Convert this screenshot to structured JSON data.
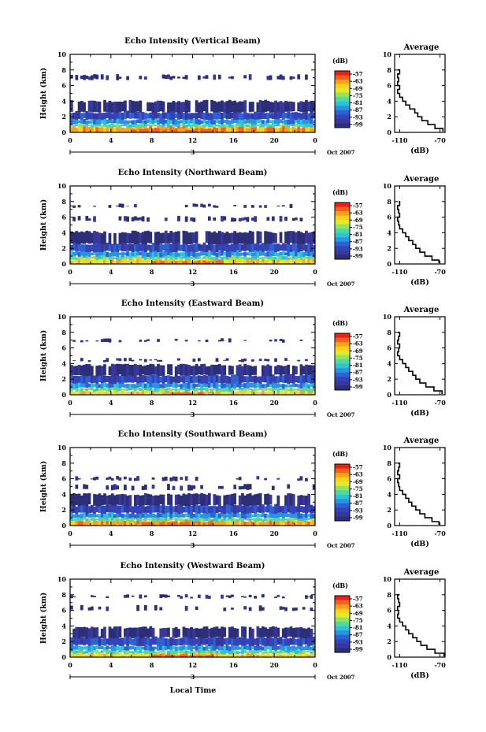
{
  "chart_data": {
    "type": "heatmap",
    "xlabel": "Local Time",
    "date_label": "3",
    "date_suffix": "Oct 2007",
    "ylabel": "Height (km)",
    "xlim": [
      0,
      24
    ],
    "ylim": [
      0,
      10
    ],
    "x_ticks": [
      "0",
      "4",
      "8",
      "12",
      "16",
      "20",
      "0"
    ],
    "y_ticks": [
      "0",
      "2",
      "4",
      "6",
      "8",
      "10"
    ],
    "colorbar": {
      "unit": "(dB)",
      "ticks": [
        "-57",
        "-63",
        "-69",
        "-75",
        "-81",
        "-87",
        "-93",
        "-99"
      ],
      "colors": [
        "#ee1f18",
        "#f5601a",
        "#f8a11c",
        "#fad21c",
        "#e0ec2a",
        "#93e262",
        "#4fd8a0",
        "#2cc3d8",
        "#2a92e0",
        "#2e62d3",
        "#3443b8",
        "#38379a",
        "#2c2f78"
      ]
    },
    "average": {
      "title": "Average",
      "xlabel": "(dB)",
      "x_ticks": [
        "-110",
        "-70"
      ],
      "xlim": [
        -115,
        -65
      ],
      "y_ticks": [
        "0",
        "2",
        "4",
        "6",
        "8",
        "10"
      ],
      "heights": [
        0.1,
        0.5,
        1.0,
        1.5,
        2.0,
        2.5,
        3.0,
        3.5,
        4.0,
        4.5,
        5.0,
        5.5,
        6.0,
        6.5,
        7.0,
        7.5,
        8.0
      ]
    },
    "panels": [
      {
        "title": "Echo Intensity (Vertical Beam)",
        "bands": [
          [
            0.0,
            0.7,
            2
          ],
          [
            0.7,
            1.1,
            6
          ],
          [
            1.1,
            1.7,
            8
          ],
          [
            1.7,
            2.6,
            10
          ],
          [
            2.6,
            4.0,
            12
          ],
          [
            6.8,
            7.3,
            12
          ]
        ],
        "hot": [
          [
            6,
            14,
            0.0,
            0.5,
            1
          ]
        ],
        "profile": [
          -67,
          -75,
          -82,
          -88,
          -92,
          -95,
          -100,
          -104,
          -107,
          -110,
          -112,
          -110,
          -112,
          -111,
          -112,
          -110,
          -112
        ]
      },
      {
        "title": "Echo Intensity (Northward Beam)",
        "bands": [
          [
            0.0,
            0.6,
            3
          ],
          [
            0.6,
            1.0,
            6
          ],
          [
            1.0,
            1.6,
            8
          ],
          [
            1.6,
            2.6,
            10
          ],
          [
            2.6,
            4.1,
            12
          ],
          [
            5.5,
            6.0,
            12
          ],
          [
            7.3,
            7.6,
            12
          ]
        ],
        "hot": [
          [
            8,
            15,
            0.0,
            0.45,
            1
          ]
        ],
        "profile": [
          -71,
          -78,
          -85,
          -90,
          -94,
          -97,
          -101,
          -104,
          -107,
          -110,
          -111,
          -112,
          -110,
          -111,
          -112,
          -110,
          -111
        ]
      },
      {
        "title": "Echo Intensity (Eastward Beam)",
        "bands": [
          [
            0.0,
            0.5,
            3
          ],
          [
            0.5,
            0.9,
            6
          ],
          [
            0.9,
            1.5,
            8
          ],
          [
            1.5,
            2.5,
            10
          ],
          [
            2.5,
            3.8,
            12
          ],
          [
            4.3,
            4.6,
            12
          ],
          [
            6.8,
            7.1,
            12
          ]
        ],
        "hot": [
          [
            9,
            13,
            0.0,
            0.35,
            1
          ]
        ],
        "profile": [
          -68,
          -76,
          -84,
          -90,
          -94,
          -97,
          -101,
          -104,
          -107,
          -110,
          -112,
          -111,
          -110,
          -112,
          -111,
          -110,
          -112
        ]
      },
      {
        "title": "Echo Intensity (Southward Beam)",
        "bands": [
          [
            0.0,
            0.6,
            2
          ],
          [
            0.6,
            1.0,
            6
          ],
          [
            1.0,
            1.6,
            8
          ],
          [
            1.6,
            2.6,
            10
          ],
          [
            2.6,
            4.0,
            12
          ],
          [
            4.6,
            5.2,
            12
          ],
          [
            5.8,
            6.2,
            12
          ]
        ],
        "hot": [
          [
            7,
            14,
            0.0,
            0.5,
            1
          ]
        ],
        "profile": [
          -71,
          -78,
          -85,
          -90,
          -94,
          -98,
          -101,
          -104,
          -107,
          -110,
          -111,
          -112,
          -110,
          -112,
          -111,
          -110,
          -112
        ]
      },
      {
        "title": "Echo Intensity (Westward Beam)",
        "bands": [
          [
            0.0,
            0.5,
            3
          ],
          [
            0.5,
            0.9,
            6
          ],
          [
            0.9,
            1.5,
            8
          ],
          [
            1.5,
            2.5,
            10
          ],
          [
            2.5,
            3.8,
            12
          ],
          [
            6.0,
            6.5,
            12
          ],
          [
            7.6,
            7.9,
            12
          ]
        ],
        "hot": [
          [
            8,
            14,
            0.0,
            0.4,
            1
          ]
        ],
        "profile": [
          -66,
          -75,
          -83,
          -89,
          -93,
          -97,
          -101,
          -104,
          -107,
          -110,
          -112,
          -111,
          -112,
          -110,
          -111,
          -112,
          -110
        ]
      }
    ]
  }
}
